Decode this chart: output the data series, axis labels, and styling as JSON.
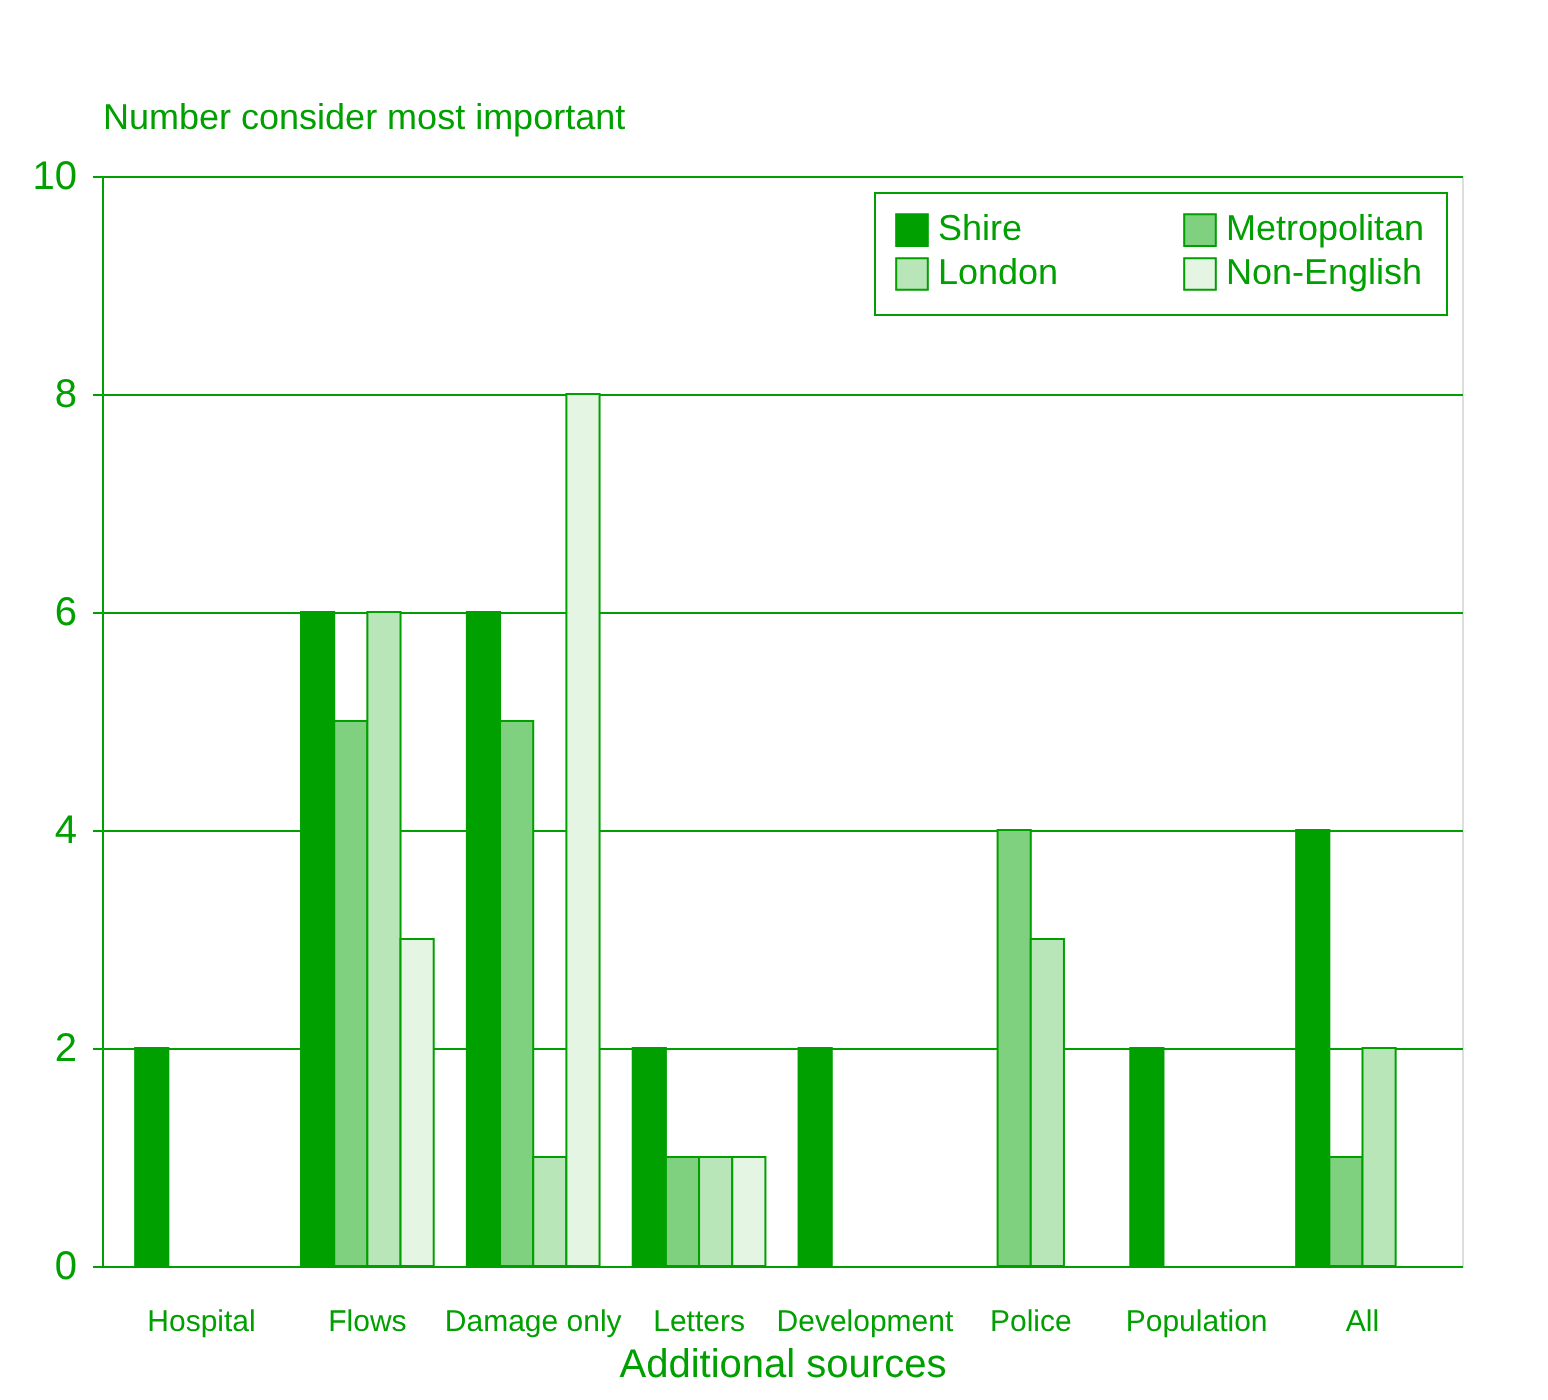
{
  "chart_data": {
    "type": "bar",
    "ylabel": "Number consider most important",
    "xlabel": "Additional sources",
    "categories": [
      "Hospital",
      "Flows",
      "Damage only",
      "Letters",
      "Development",
      "Police",
      "Population",
      "All"
    ],
    "series": [
      {
        "name": "Shire",
        "color": "#00a000",
        "values": [
          2,
          6,
          6,
          2,
          2,
          null,
          2,
          4
        ]
      },
      {
        "name": "Metropolitan",
        "color": "#7fd07f",
        "values": [
          null,
          5,
          5,
          1,
          null,
          4,
          null,
          1
        ]
      },
      {
        "name": "London",
        "color": "#b8e6b8",
        "values": [
          null,
          6,
          1,
          1,
          null,
          3,
          null,
          2
        ]
      },
      {
        "name": "Non-English",
        "color": "#e4f5e4",
        "values": [
          null,
          3,
          8,
          1,
          null,
          null,
          null,
          null
        ]
      }
    ],
    "ylim": [
      0,
      10
    ],
    "yticks": [
      0,
      2,
      4,
      6,
      8,
      10
    ],
    "grid": "y",
    "legend": "top right"
  }
}
